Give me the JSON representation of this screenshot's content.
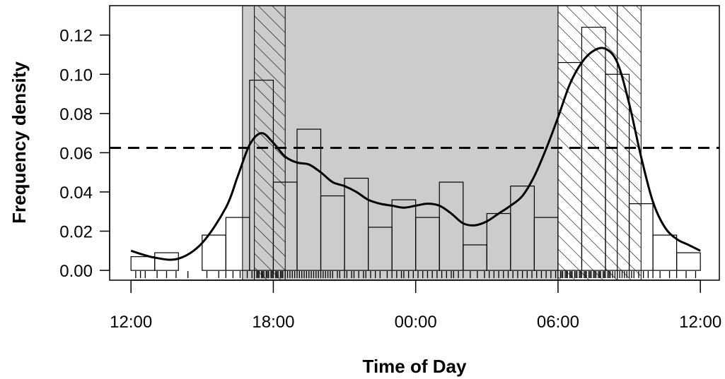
{
  "chart_data": {
    "type": "histogram",
    "title": "",
    "xlabel": "Time of Day",
    "ylabel": "Frequency density",
    "x_unit": "hours",
    "xlim": [
      11.1,
      12.8
    ],
    "ylim": [
      -0.005,
      0.135
    ],
    "x_ticks": [
      {
        "value": 12,
        "label": "12:00"
      },
      {
        "value": 18,
        "label": "18:00"
      },
      {
        "value": 24,
        "label": "00:00"
      },
      {
        "value": 30,
        "label": "06:00"
      },
      {
        "value": 36,
        "label": "12:00"
      }
    ],
    "y_ticks": [
      {
        "value": 0.0,
        "label": "0.00"
      },
      {
        "value": 0.02,
        "label": "0.02"
      },
      {
        "value": 0.04,
        "label": "0.04"
      },
      {
        "value": 0.06,
        "label": "0.06"
      },
      {
        "value": 0.08,
        "label": "0.08"
      },
      {
        "value": 0.1,
        "label": "0.10"
      },
      {
        "value": 0.12,
        "label": "0.12"
      }
    ],
    "shaded_region": {
      "start": 16.7,
      "end": 30.0
    },
    "hatched_regions": [
      {
        "start": 17.2,
        "end": 18.5
      },
      {
        "start": 30.0,
        "end": 32.5
      }
    ],
    "open_hatched_regions": [
      {
        "start": 32.5,
        "end": 33.5
      }
    ],
    "reference_line": {
      "y": 0.0625,
      "style": "dashed"
    },
    "bins": [
      {
        "start": 12,
        "end": 13,
        "density": 0.007
      },
      {
        "start": 13,
        "end": 14,
        "density": 0.009
      },
      {
        "start": 14,
        "end": 15,
        "density": 0.0
      },
      {
        "start": 15,
        "end": 16,
        "density": 0.018
      },
      {
        "start": 16,
        "end": 17,
        "density": 0.027
      },
      {
        "start": 17,
        "end": 18,
        "density": 0.097
      },
      {
        "start": 18,
        "end": 19,
        "density": 0.045
      },
      {
        "start": 19,
        "end": 20,
        "density": 0.072
      },
      {
        "start": 20,
        "end": 21,
        "density": 0.038
      },
      {
        "start": 21,
        "end": 22,
        "density": 0.047
      },
      {
        "start": 22,
        "end": 23,
        "density": 0.022
      },
      {
        "start": 23,
        "end": 24,
        "density": 0.036
      },
      {
        "start": 24,
        "end": 25,
        "density": 0.027
      },
      {
        "start": 25,
        "end": 26,
        "density": 0.045
      },
      {
        "start": 26,
        "end": 27,
        "density": 0.013
      },
      {
        "start": 27,
        "end": 28,
        "density": 0.029
      },
      {
        "start": 28,
        "end": 29,
        "density": 0.043
      },
      {
        "start": 29,
        "end": 30,
        "density": 0.027
      },
      {
        "start": 30,
        "end": 31,
        "density": 0.106
      },
      {
        "start": 31,
        "end": 32,
        "density": 0.124
      },
      {
        "start": 32,
        "end": 33,
        "density": 0.1
      },
      {
        "start": 33,
        "end": 34,
        "density": 0.034
      },
      {
        "start": 34,
        "end": 35,
        "density": 0.018
      },
      {
        "start": 35,
        "end": 36,
        "density": 0.009
      }
    ],
    "density_curve": {
      "x": [
        12,
        13,
        14,
        15,
        16,
        16.5,
        17,
        17.5,
        18,
        18.5,
        19,
        19.5,
        20,
        20.5,
        21,
        21.5,
        22,
        22.5,
        23,
        23.5,
        24,
        24.5,
        25,
        25.5,
        26,
        26.5,
        27,
        27.5,
        28,
        28.5,
        29,
        29.5,
        30,
        30.5,
        31,
        31.5,
        32,
        32.5,
        33,
        33.5,
        34,
        34.5,
        35,
        35.5,
        36
      ],
      "y": [
        0.01,
        0.0065,
        0.006,
        0.014,
        0.032,
        0.048,
        0.064,
        0.07,
        0.065,
        0.058,
        0.055,
        0.054,
        0.05,
        0.045,
        0.043,
        0.04,
        0.036,
        0.034,
        0.033,
        0.032,
        0.033,
        0.034,
        0.033,
        0.029,
        0.024,
        0.023,
        0.025,
        0.029,
        0.033,
        0.038,
        0.048,
        0.062,
        0.078,
        0.095,
        0.106,
        0.112,
        0.113,
        0.106,
        0.085,
        0.058,
        0.035,
        0.022,
        0.016,
        0.013,
        0.01
      ]
    },
    "rug": [
      12.2,
      12.4,
      12.6,
      13.1,
      13.5,
      13.9,
      14.4,
      15.2,
      15.7,
      16.0,
      16.3,
      16.6,
      16.9,
      17.1,
      17.2,
      17.3,
      17.35,
      17.4,
      17.5,
      17.55,
      17.6,
      17.7,
      17.75,
      17.8,
      17.9,
      17.95,
      18.0,
      18.1,
      18.15,
      18.2,
      18.3,
      18.35,
      18.4,
      18.5,
      18.6,
      18.7,
      18.8,
      18.9,
      19.0,
      19.1,
      19.2,
      19.3,
      19.4,
      19.5,
      19.6,
      19.7,
      19.8,
      19.9,
      20.0,
      20.1,
      20.2,
      20.3,
      20.4,
      20.5,
      20.7,
      20.8,
      21.0,
      21.1,
      21.3,
      21.4,
      21.6,
      21.8,
      21.9,
      22.1,
      22.3,
      22.5,
      22.8,
      23.0,
      23.2,
      23.4,
      23.5,
      23.7,
      23.9,
      24.1,
      24.3,
      24.5,
      24.7,
      24.9,
      25.1,
      25.3,
      25.5,
      25.6,
      25.8,
      26.0,
      26.3,
      26.6,
      26.9,
      27.1,
      27.3,
      27.5,
      27.7,
      27.9,
      28.1,
      28.3,
      28.5,
      28.7,
      28.9,
      29.1,
      29.3,
      29.5,
      29.7,
      29.9,
      30.0,
      30.1,
      30.15,
      30.2,
      30.3,
      30.35,
      30.4,
      30.5,
      30.55,
      30.6,
      30.7,
      30.75,
      30.8,
      30.9,
      30.95,
      31.0,
      31.1,
      31.15,
      31.2,
      31.3,
      31.35,
      31.4,
      31.5,
      31.55,
      31.6,
      31.7,
      31.75,
      31.8,
      31.9,
      31.95,
      32.0,
      32.1,
      32.15,
      32.2,
      32.3,
      32.4,
      32.5,
      32.6,
      32.7,
      32.8,
      32.9,
      33.0,
      33.1,
      33.2,
      33.4,
      33.6,
      33.8,
      34.0,
      34.3,
      34.7,
      35.0,
      35.4,
      35.8
    ]
  }
}
